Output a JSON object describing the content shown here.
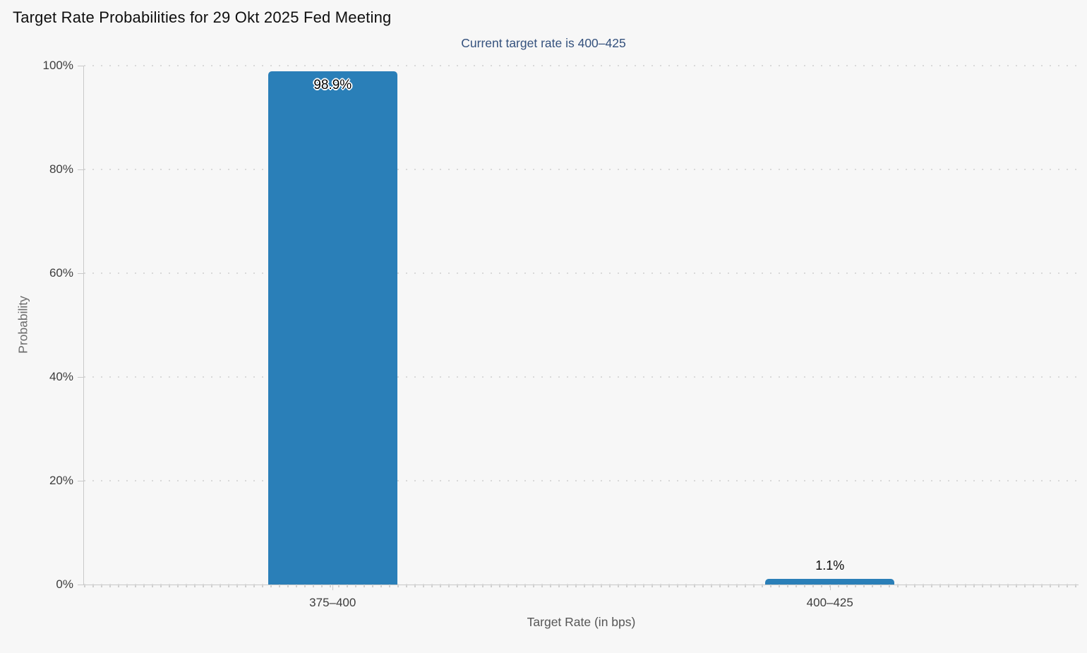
{
  "page": {
    "background": "#f7f7f7"
  },
  "chart_data": {
    "type": "bar",
    "title": "Target Rate Probabilities for 29 Okt 2025 Fed Meeting",
    "subtitle": "Current target rate is 400–425",
    "categories": [
      "375–400",
      "400–425"
    ],
    "values": [
      98.9,
      1.1
    ],
    "value_labels": [
      "98.9%",
      "1.1%"
    ],
    "xlabel": "Target Rate (in bps)",
    "ylabel": "Probability",
    "ylim": [
      0,
      100
    ],
    "y_tick_step": 20,
    "y_tick_labels": [
      "0%",
      "20%",
      "40%",
      "60%",
      "80%",
      "100%"
    ],
    "grid": "dotted-horizontal",
    "legend": "none",
    "bar_color": "#2a7fb8",
    "background": "#f7f7f7",
    "axis_color": "#c9c9c9",
    "subtitle_color": "#34517d"
  }
}
